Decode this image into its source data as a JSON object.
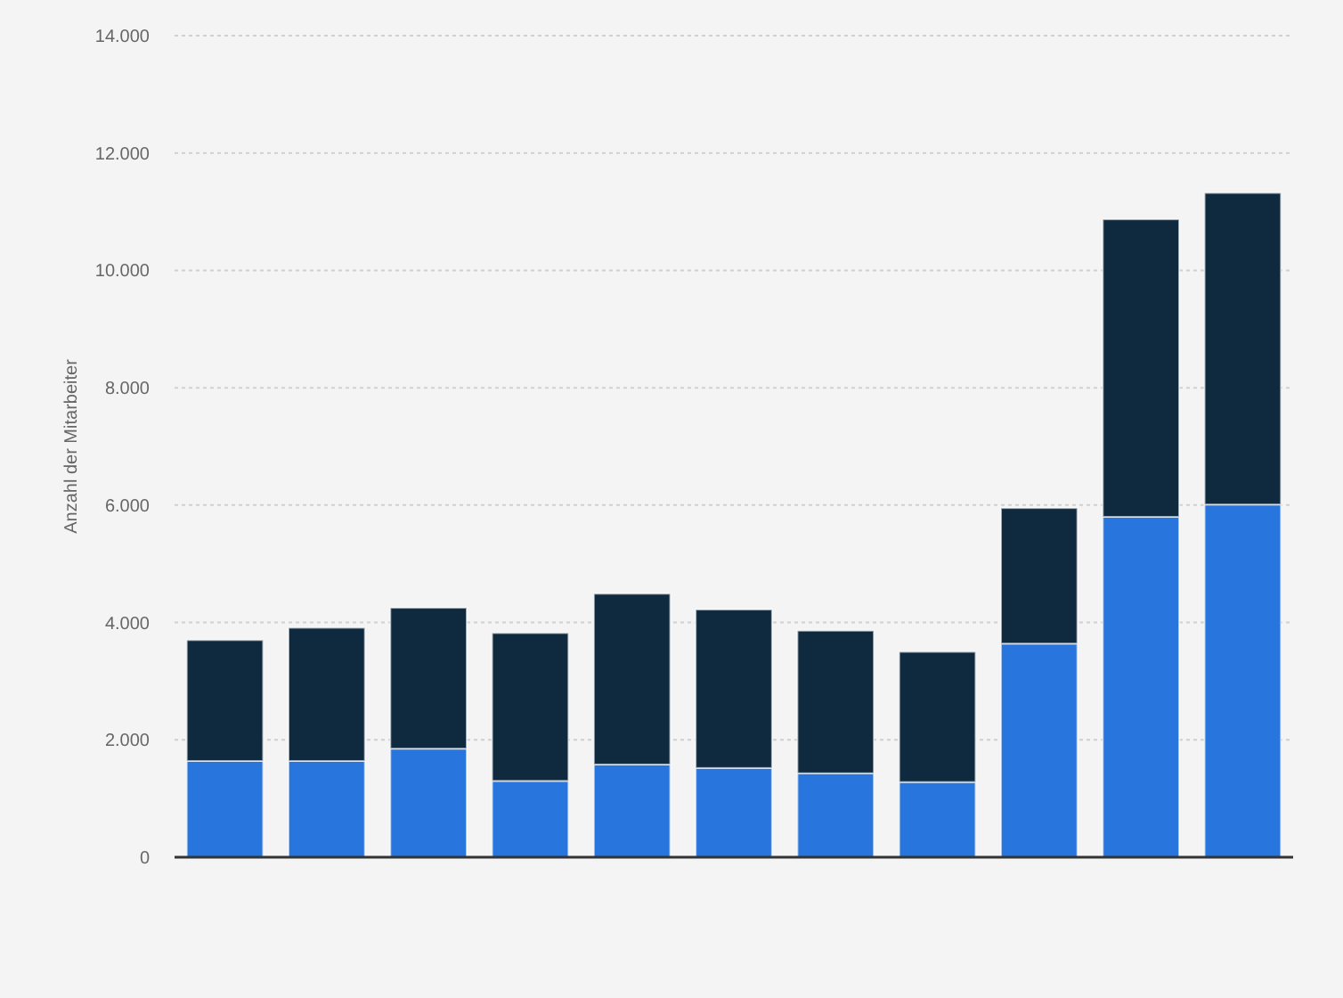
{
  "chart_data": {
    "type": "bar",
    "stacked": true,
    "ylabel": "Anzahl der Mitarbeiter",
    "categories": [
      null,
      null,
      null,
      null,
      null,
      null,
      null,
      null,
      null,
      null,
      null
    ],
    "series": [
      {
        "color": "#2876dd",
        "values": [
          1640,
          1640,
          1850,
          1300,
          1580,
          1520,
          1430,
          1280,
          3640,
          5800,
          6010
        ]
      },
      {
        "color": "#0f2a3f",
        "values": [
          2060,
          2270,
          2400,
          2520,
          2910,
          2700,
          2430,
          2220,
          2310,
          5070,
          5310
        ]
      }
    ],
    "ylim": [
      0,
      14000
    ],
    "yticks": [
      {
        "value": 0,
        "label": "0"
      },
      {
        "value": 2000,
        "label": "2.000"
      },
      {
        "value": 4000,
        "label": "4.000"
      },
      {
        "value": 6000,
        "label": "6.000"
      },
      {
        "value": 8000,
        "label": "8.000"
      },
      {
        "value": 10000,
        "label": "10.000"
      },
      {
        "value": 12000,
        "label": "12.000"
      },
      {
        "value": 14000,
        "label": "14.000"
      }
    ],
    "grid": "y"
  }
}
